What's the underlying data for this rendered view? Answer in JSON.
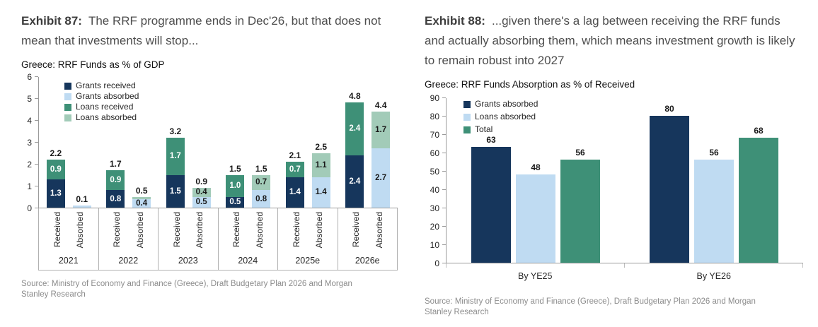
{
  "left_panel": {
    "exhibit_label": "Exhibit 87:",
    "exhibit_text": "The RRF programme ends in Dec'26, but that does not mean that investments will stop...",
    "source": "Source: Ministry of Economy and Finance (Greece), Draft Budgetary Plan 2026 and Morgan Stanley Research"
  },
  "right_panel": {
    "exhibit_label": "Exhibit 88:",
    "exhibit_text": "...given there's a lag between receiving the RRF funds and actually absorbing them, which means investment growth is likely to remain robust into 2027",
    "source": "Source: Ministry of Economy and Finance (Greece), Draft Budgetary Plan 2026 and Morgan Stanley Research"
  },
  "chart_data": [
    {
      "id": "rrf-funds-pct-gdp",
      "type": "bar",
      "subtype": "grouped-stacked",
      "title": "Greece: RRF Funds as % of GDP",
      "ylim": [
        0,
        6
      ],
      "ytick_step": 1,
      "grid": false,
      "legend_position": "inside-top-left",
      "legend": [
        {
          "name": "Grants received",
          "color": "#16365C",
          "label_color": "#ffffff"
        },
        {
          "name": "Grants absorbed",
          "color": "#BFDBF2",
          "label_color": "#1a1a1a"
        },
        {
          "name": "Loans received",
          "color": "#3E9077",
          "label_color": "#ffffff"
        },
        {
          "name": "Loans absorbed",
          "color": "#A2CBB8",
          "label_color": "#1a1a1a"
        }
      ],
      "categories": [
        "2021",
        "2022",
        "2023",
        "2024",
        "2025e",
        "2026e"
      ],
      "stack_labels": [
        "Received",
        "Absorbed"
      ],
      "stacks": {
        "received": {
          "segments": [
            {
              "series": "Grants received",
              "values": [
                1.3,
                0.8,
                1.5,
                0.5,
                1.4,
                2.4
              ]
            },
            {
              "series": "Loans received",
              "values": [
                0.9,
                0.9,
                1.7,
                1.0,
                0.7,
                2.4
              ]
            }
          ],
          "totals": [
            "2.2",
            "1.7",
            "3.2",
            "1.5",
            "2.1",
            "4.8"
          ]
        },
        "absorbed": {
          "segments": [
            {
              "series": "Grants absorbed",
              "values": [
                0.1,
                0.4,
                0.5,
                0.8,
                1.4,
                2.7
              ]
            },
            {
              "series": "Loans absorbed",
              "values": [
                0.0,
                0.1,
                0.4,
                0.7,
                1.1,
                1.7
              ]
            }
          ],
          "totals": [
            "0.1",
            "0.5",
            "0.9",
            "1.5",
            "2.5",
            "4.4"
          ]
        }
      },
      "segment_label_min_value": 0.4
    },
    {
      "id": "rrf-absorption-pct-received",
      "type": "bar",
      "subtype": "grouped",
      "title": "Greece: RRF Funds Absorption as % of Received",
      "ylim": [
        0,
        90
      ],
      "ytick_step": 10,
      "grid": false,
      "legend_position": "inside-top-left",
      "legend": [
        {
          "name": "Grants absorbed",
          "color": "#16365C"
        },
        {
          "name": "Loans absorbed",
          "color": "#BFDBF2"
        },
        {
          "name": "Total",
          "color": "#3E9077"
        }
      ],
      "categories": [
        "By YE25",
        "By YE26"
      ],
      "series": [
        {
          "name": "Grants absorbed",
          "values": [
            63,
            80
          ]
        },
        {
          "name": "Loans absorbed",
          "values": [
            48,
            56
          ]
        },
        {
          "name": "Total",
          "values": [
            56,
            68
          ]
        }
      ]
    }
  ]
}
